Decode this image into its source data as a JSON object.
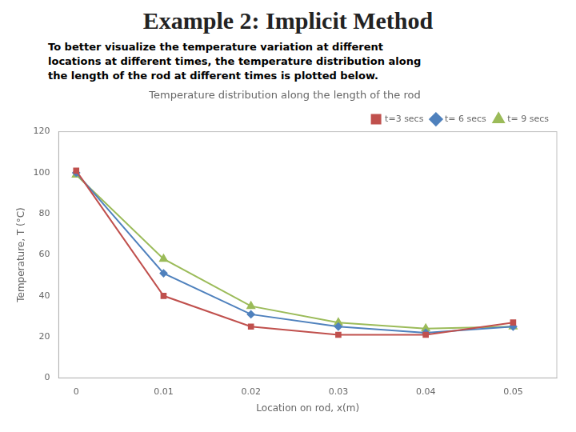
{
  "title": "Example 2: Implicit Method",
  "subtitle": "To better visualize the temperature variation at different\nlocations at different times, the temperature distribution along\nthe length of the rod at different times is plotted below.",
  "chart_data": {
    "type": "line",
    "title": "Temperature distribution along the length of the rod",
    "xlabel": "Location on rod, x(m)",
    "ylabel": "Temperature, T (°C)",
    "x": [
      0,
      0.01,
      0.02,
      0.03,
      0.04,
      0.05
    ],
    "series": [
      {
        "name": "t=3 secs",
        "color": "#c0504d",
        "marker": "square",
        "line_style": "solid",
        "values": [
          101,
          40,
          25,
          21,
          21,
          27
        ]
      },
      {
        "name": "t= 6 secs",
        "color": "#4f81bd",
        "marker": "diamond",
        "line_style": "solid",
        "values": [
          100,
          51,
          31,
          25,
          22,
          25
        ]
      },
      {
        "name": "t= 9 secs",
        "color": "#9bbb59",
        "marker": "triangle",
        "line_style": "solid",
        "values": [
          99,
          58,
          35,
          27,
          24,
          25
        ]
      }
    ],
    "xlim": [
      -0.002,
      0.055
    ],
    "xticks": [
      0,
      0.01,
      0.02,
      0.03,
      0.04,
      0.05
    ],
    "ylim": [
      0,
      120
    ],
    "yticks": [
      0,
      20,
      40,
      60,
      80,
      100,
      120
    ],
    "grid": false,
    "legend": "upper right"
  }
}
